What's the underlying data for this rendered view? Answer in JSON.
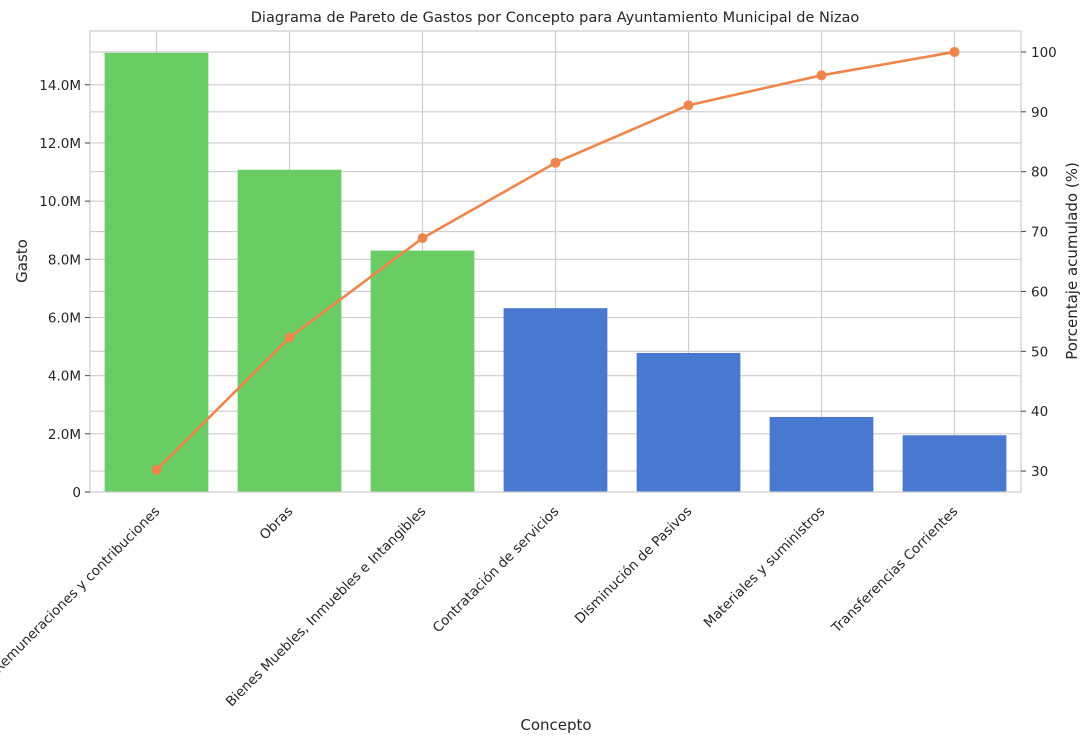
{
  "chart_data": {
    "type": "bar",
    "title": "Diagrama de Pareto de Gastos por Concepto para Ayuntamiento Municipal de Nizao",
    "xlabel": "Concepto",
    "ylabel": "Gasto",
    "y2label": "Porcentaje acumulado (%)",
    "categories": [
      "Remuneraciones y contribuciones",
      "Obras",
      "Bienes Muebles, Inmuebles e Intangibles",
      "Contratación de servicios",
      "Disminución de Pasivos",
      "Materiales y suministros",
      "Transferencias Corrientes"
    ],
    "values": [
      15100000,
      11080000,
      8300000,
      6320000,
      4780000,
      2580000,
      1950000
    ],
    "bar_colors": [
      "#6acc64",
      "#6acc64",
      "#6acc64",
      "#4878d0",
      "#4878d0",
      "#4878d0",
      "#4878d0"
    ],
    "cumulative_percent": [
      30.2,
      52.3,
      68.9,
      81.5,
      91.1,
      96.1,
      100.0
    ],
    "line_color": "#ee854a",
    "ylim": [
      0,
      15850000
    ],
    "y_ticks": [
      0,
      2000000,
      4000000,
      6000000,
      8000000,
      10000000,
      12000000,
      14000000
    ],
    "y_tick_labels": [
      "0",
      "2.0M",
      "4.0M",
      "6.0M",
      "8.0M",
      "10.0M",
      "12.0M",
      "14.0M"
    ],
    "y2lim": [
      26.5,
      103.5
    ],
    "y2_ticks": [
      30,
      40,
      50,
      60,
      70,
      80,
      90,
      100
    ],
    "y2_tick_labels": [
      "30",
      "40",
      "50",
      "60",
      "70",
      "80",
      "90",
      "100"
    ],
    "grid": true
  }
}
